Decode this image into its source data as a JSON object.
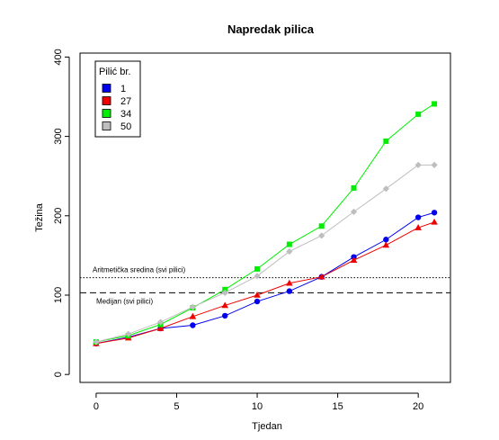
{
  "chart_data": {
    "type": "line",
    "title": "Napredak pilica",
    "xlabel": "Tjedan",
    "ylabel": "Težina",
    "xlim": [
      -1,
      22
    ],
    "ylim": [
      -10,
      405
    ],
    "x_ticks": [
      0,
      5,
      10,
      15,
      20
    ],
    "y_ticks": [
      0,
      100,
      200,
      300,
      400
    ],
    "legend": {
      "title": "Pilić br.",
      "position": "top-left"
    },
    "series": [
      {
        "name": "1",
        "color": "#0000ee",
        "marker": "circle",
        "x": [
          0,
          2,
          4,
          6,
          8,
          10,
          12,
          14,
          16,
          18,
          20,
          21
        ],
        "y": [
          39,
          47,
          58,
          62,
          74,
          92,
          105,
          123,
          148,
          170,
          198,
          204
        ]
      },
      {
        "name": "27",
        "color": "#ee0000",
        "marker": "triangle",
        "x": [
          0,
          2,
          4,
          6,
          8,
          10,
          12,
          14,
          16,
          18,
          20,
          21
        ],
        "y": [
          39,
          46,
          58,
          73,
          87,
          100,
          115,
          123,
          144,
          163,
          185,
          192
        ]
      },
      {
        "name": "34",
        "color": "#00ee00",
        "marker": "square",
        "x": [
          0,
          2,
          4,
          6,
          8,
          10,
          12,
          14,
          16,
          18,
          20,
          21
        ],
        "y": [
          41,
          49,
          63,
          84,
          107,
          133,
          164,
          187,
          235,
          294,
          328,
          341
        ]
      },
      {
        "name": "50",
        "color": "#bebebe",
        "marker": "diamond",
        "x": [
          0,
          2,
          4,
          6,
          8,
          10,
          12,
          14,
          16,
          18,
          20,
          21
        ],
        "y": [
          41,
          51,
          66,
          85,
          103,
          124,
          155,
          175,
          205,
          234,
          264,
          264
        ]
      }
    ],
    "reference_lines": [
      {
        "label": "Aritmetička sredina (svi pilici)",
        "y": 122,
        "style": "dotted"
      },
      {
        "label": "Medijan (svi pilici)",
        "y": 103,
        "style": "dashed"
      }
    ]
  }
}
